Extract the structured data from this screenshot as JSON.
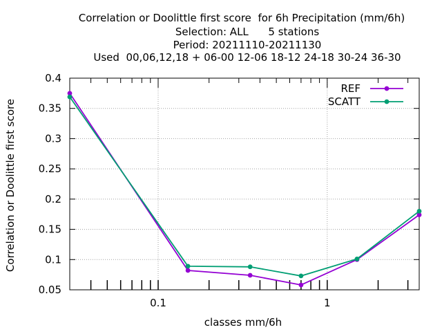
{
  "title_lines": [
    "Correlation or Doolittle first score  for 6h Precipitation (mm/6h)",
    "Selection: ALL      5 stations",
    "Period: 20211110-20211130",
    "Used  00,06,12,18 + 06-00 12-06 18-12 24-18 30-24 36-30"
  ],
  "chart_data": {
    "type": "line",
    "title": "Correlation or Doolittle first score  for 6h Precipitation (mm/6h)",
    "xlabel": "classes mm/6h",
    "ylabel": "Correlation or Doolittle first score",
    "xscale": "log",
    "xlim": [
      0.03,
      3.5
    ],
    "ylim": [
      0.05,
      0.4
    ],
    "x_ticks": [
      0.1,
      1
    ],
    "x_tick_labels": [
      "0.1",
      "1"
    ],
    "y_ticks": [
      0.05,
      0.1,
      0.15,
      0.2,
      0.25,
      0.3,
      0.35,
      0.4
    ],
    "y_tick_labels": [
      "0.05",
      "0.1",
      "0.15",
      "0.2",
      "0.25",
      "0.3",
      "0.35",
      "0.4"
    ],
    "grid": true,
    "legend_position": "top-right",
    "x": [
      0.03,
      0.15,
      0.35,
      0.7,
      1.5,
      3.5
    ],
    "series": [
      {
        "name": "REF",
        "color": "#9400d3",
        "values": [
          0.375,
          0.082,
          0.074,
          0.058,
          0.1,
          0.174
        ]
      },
      {
        "name": "SCATT",
        "color": "#009e73",
        "values": [
          0.369,
          0.089,
          0.088,
          0.073,
          0.101,
          0.18
        ]
      }
    ]
  }
}
